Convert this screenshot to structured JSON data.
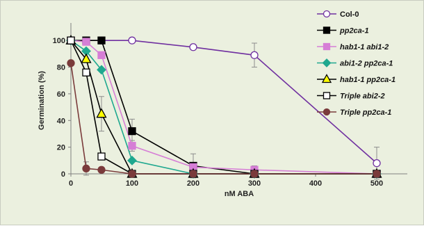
{
  "chart_data": {
    "type": "line",
    "xlabel": "nM ABA",
    "ylabel": "Germination (%)",
    "xlim": [
      0,
      550
    ],
    "ylim": [
      0,
      110
    ],
    "xticks": [
      0,
      100,
      200,
      300,
      400,
      500
    ],
    "yticks": [
      0,
      20,
      40,
      60,
      80,
      100
    ],
    "legend_position": "right",
    "grid": false,
    "series": [
      {
        "name": "Col-0",
        "italic": false,
        "color": "#7030a0",
        "marker": "circle",
        "marker_fill": "#ffffff",
        "x": [
          0,
          25,
          50,
          100,
          200,
          300,
          500
        ],
        "y": [
          100,
          100,
          100,
          100,
          95,
          89,
          8
        ],
        "err": [
          0,
          0,
          0,
          0,
          0,
          9,
          12
        ]
      },
      {
        "name": "pp2ca-1",
        "italic": true,
        "color": "#000000",
        "marker": "square",
        "marker_fill": "#000000",
        "x": [
          0,
          25,
          50,
          100,
          200,
          300,
          500
        ],
        "y": [
          100,
          100,
          100,
          32,
          6,
          0,
          0
        ],
        "err": [
          0,
          0,
          0,
          9,
          9,
          0,
          0
        ]
      },
      {
        "name": "hab1-1 abi1-2",
        "italic": true,
        "color": "#d67ed6",
        "marker": "square",
        "marker_fill": "#d67ed6",
        "x": [
          0,
          25,
          50,
          100,
          200,
          300,
          500
        ],
        "y": [
          100,
          99,
          89,
          21,
          5,
          3,
          0
        ],
        "err": [
          0,
          0,
          0,
          4,
          0,
          3,
          0
        ]
      },
      {
        "name": "abi1-2 pp2ca-1",
        "italic": true,
        "color": "#1fa88f",
        "marker": "diamond",
        "marker_fill": "#1fa88f",
        "x": [
          0,
          25,
          50,
          100,
          200,
          300,
          500
        ],
        "y": [
          100,
          92,
          78,
          10,
          0,
          0,
          0
        ],
        "err": [
          0,
          0,
          0,
          0,
          0,
          0,
          0
        ]
      },
      {
        "name": "hab1-1 pp2ca-1",
        "italic": true,
        "color": "#000000",
        "marker": "triangle",
        "marker_fill": "#ffff00",
        "x": [
          0,
          25,
          50,
          100,
          200,
          300,
          500
        ],
        "y": [
          100,
          86,
          45,
          0,
          0,
          0,
          0
        ],
        "err": [
          0,
          0,
          13,
          0,
          0,
          0,
          0
        ]
      },
      {
        "name": "Triple abi2-2",
        "italic": true,
        "color": "#000000",
        "marker": "square",
        "marker_fill": "#ffffff",
        "x": [
          0,
          25,
          50,
          100,
          200,
          300,
          500
        ],
        "y": [
          100,
          76,
          13,
          0,
          0,
          0,
          0
        ],
        "err": [
          0,
          0,
          0,
          0,
          0,
          0,
          0
        ]
      },
      {
        "name": "Triple pp2ca-1",
        "italic": true,
        "color": "#7a3b3b",
        "marker": "circle",
        "marker_fill": "#7a3b3b",
        "x": [
          0,
          25,
          50,
          100,
          200,
          300,
          500
        ],
        "y": [
          83,
          4,
          3,
          0,
          0,
          0,
          0
        ],
        "err": [
          0,
          5,
          0,
          0,
          0,
          0,
          0
        ]
      }
    ]
  }
}
